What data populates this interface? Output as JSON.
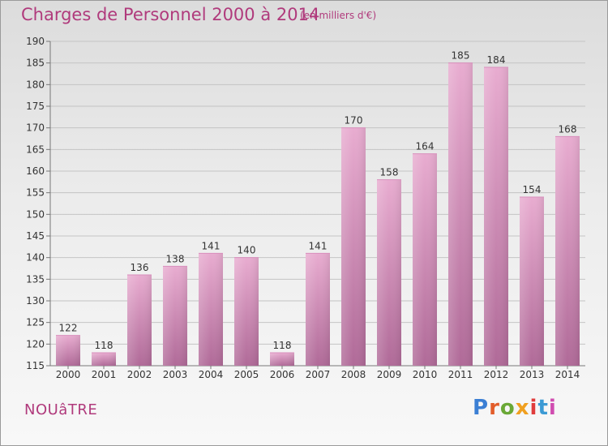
{
  "header": {
    "title": "Charges de Personnel 2000 à 2014",
    "subtitle": "(en milliers d'€)"
  },
  "footer": {
    "place": "NOUâTRE",
    "logo": "Proxiti"
  },
  "colors": {
    "title": "#b03a7c",
    "bar_top": "#e8acd0",
    "bar_bottom": "#b06a98",
    "logo_letters": [
      "#3b7fd4",
      "#e25d2a",
      "#6aa836",
      "#f0a020",
      "#e03c3c",
      "#3b9ad4",
      "#d04cb0"
    ]
  },
  "chart_data": {
    "type": "bar",
    "title": "Charges de Personnel 2000 à 2014",
    "subtitle": "(en milliers d'€)",
    "categories": [
      "2000",
      "2001",
      "2002",
      "2003",
      "2004",
      "2005",
      "2006",
      "2007",
      "2008",
      "2009",
      "2010",
      "2011",
      "2012",
      "2013",
      "2014"
    ],
    "values": [
      122,
      118,
      136,
      138,
      141,
      140,
      118,
      141,
      170,
      158,
      164,
      185,
      184,
      154,
      168
    ],
    "ylim": [
      115,
      190
    ],
    "yticks": [
      115,
      120,
      125,
      130,
      135,
      140,
      145,
      150,
      155,
      160,
      165,
      170,
      175,
      180,
      185,
      190
    ],
    "grid": true,
    "data_labels": true
  }
}
